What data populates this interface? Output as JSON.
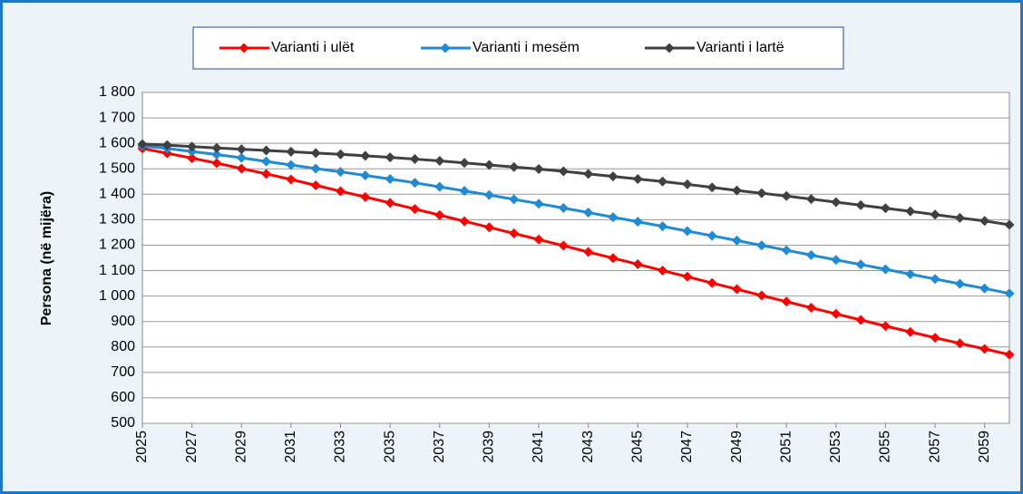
{
  "chart_data": {
    "type": "line",
    "y_label": "Persona (në mijëra)",
    "x": [
      2025,
      2026,
      2027,
      2028,
      2029,
      2030,
      2031,
      2032,
      2033,
      2034,
      2035,
      2036,
      2037,
      2038,
      2039,
      2040,
      2041,
      2042,
      2043,
      2044,
      2045,
      2046,
      2047,
      2048,
      2049,
      2050,
      2051,
      2052,
      2053,
      2054,
      2055,
      2056,
      2057,
      2058,
      2059,
      2060
    ],
    "xlim": [
      2025,
      2060
    ],
    "xticks": [
      2025,
      2027,
      2029,
      2031,
      2033,
      2035,
      2037,
      2039,
      2041,
      2043,
      2045,
      2047,
      2049,
      2051,
      2053,
      2055,
      2057,
      2059
    ],
    "ylim": [
      500,
      1800
    ],
    "yticks": [
      {
        "value": 1800,
        "label": "1 800"
      },
      {
        "value": 1700,
        "label": "1 700"
      },
      {
        "value": 1600,
        "label": "1 600"
      },
      {
        "value": 1500,
        "label": "1 500"
      },
      {
        "value": 1400,
        "label": "1 400"
      },
      {
        "value": 1300,
        "label": "1 300"
      },
      {
        "value": 1200,
        "label": "1 200"
      },
      {
        "value": 1100,
        "label": "1 100"
      },
      {
        "value": 1000,
        "label": "1 000"
      },
      900,
      800,
      700,
      600,
      500
    ],
    "grid": true,
    "legend": "top",
    "series": [
      {
        "name": "Varianti i ulët",
        "color": "#ff0000",
        "values": [
          1580,
          1561,
          1542,
          1522,
          1501,
          1480,
          1458,
          1435,
          1412,
          1389,
          1366,
          1342,
          1318,
          1294,
          1270,
          1246,
          1222,
          1198,
          1173,
          1149,
          1125,
          1100,
          1076,
          1051,
          1027,
          1002,
          978,
          954,
          930,
          906,
          882,
          859,
          836,
          814,
          792,
          770
        ]
      },
      {
        "name": "Varianti i mesëm",
        "color": "#1f8ad6",
        "values": [
          1590,
          1580,
          1568,
          1556,
          1543,
          1529,
          1515,
          1501,
          1488,
          1474,
          1460,
          1445,
          1429,
          1413,
          1397,
          1380,
          1363,
          1346,
          1328,
          1310,
          1292,
          1274,
          1255,
          1237,
          1218,
          1199,
          1180,
          1161,
          1142,
          1124,
          1105,
          1086,
          1067,
          1048,
          1030,
          1010
        ]
      },
      {
        "name": "Varianti i lartë",
        "color": "#404040",
        "values": [
          1597,
          1593,
          1587,
          1582,
          1577,
          1572,
          1567,
          1562,
          1557,
          1551,
          1545,
          1538,
          1531,
          1523,
          1515,
          1507,
          1499,
          1490,
          1480,
          1470,
          1460,
          1450,
          1439,
          1427,
          1415,
          1404,
          1393,
          1381,
          1369,
          1357,
          1345,
          1333,
          1320,
          1307,
          1295,
          1280
        ]
      }
    ]
  }
}
